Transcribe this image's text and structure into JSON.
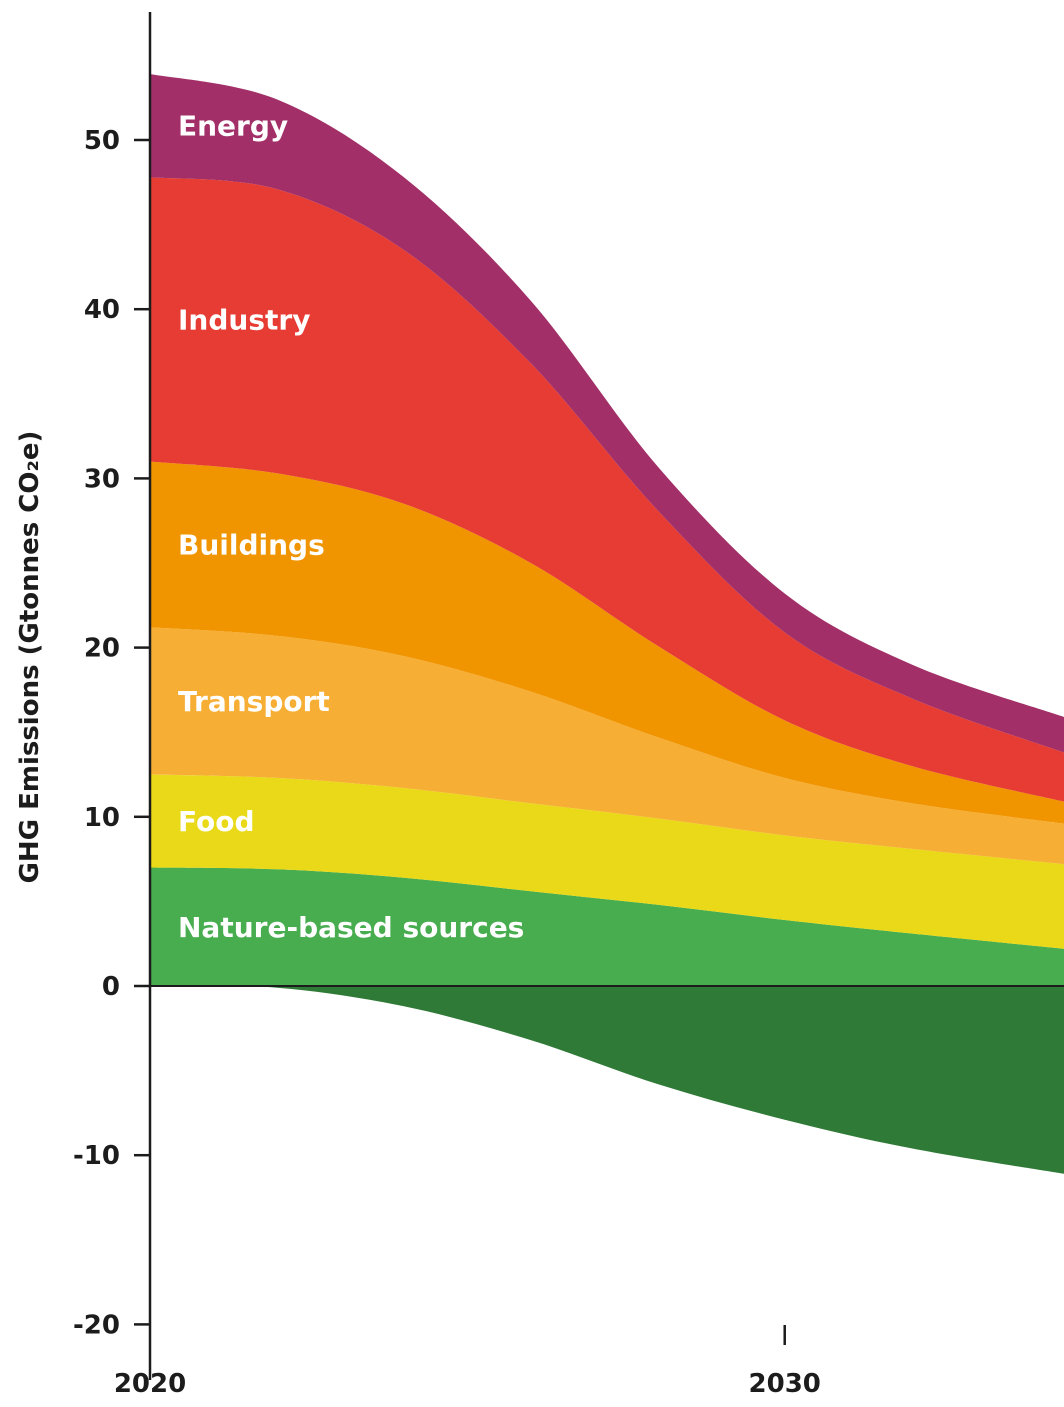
{
  "chart_data": {
    "type": "area",
    "title": "",
    "xlabel": "",
    "ylabel": "GHG Emissions (Gtonnes CO₂e)",
    "xlim": [
      2020,
      2034.4
    ],
    "ylim": [
      -21,
      58
    ],
    "x_ticks": [
      "2020",
      "2030"
    ],
    "y_ticks": [
      "50",
      "40",
      "30",
      "20",
      "10",
      "0",
      "-10",
      "-20"
    ],
    "x": [
      2020,
      2022,
      2024,
      2026,
      2028,
      2030,
      2032,
      2034.4
    ],
    "series": [
      {
        "name": "Nature-based sources",
        "color": "#47ad4f",
        "values": [
          7.0,
          6.9,
          6.4,
          5.6,
          4.8,
          3.9,
          3.1,
          2.2
        ]
      },
      {
        "name": "Food",
        "color": "#e9d918",
        "values": [
          5.5,
          5.4,
          5.3,
          5.2,
          5.1,
          5.0,
          5.0,
          5.0
        ]
      },
      {
        "name": "Transport",
        "color": "#f7ae34",
        "values": [
          8.7,
          8.4,
          7.8,
          6.6,
          4.8,
          3.4,
          2.7,
          2.4
        ]
      },
      {
        "name": "Buildings",
        "color": "#f09400",
        "values": [
          9.8,
          9.6,
          9.0,
          7.6,
          5.4,
          3.4,
          2.2,
          1.3
        ]
      },
      {
        "name": "Industry",
        "color": "#e63c34",
        "values": [
          16.8,
          16.8,
          15.0,
          11.8,
          8.0,
          5.2,
          4.0,
          2.9
        ]
      },
      {
        "name": "Energy",
        "color": "#a22f67",
        "values": [
          6.1,
          5.3,
          4.3,
          3.7,
          2.6,
          2.3,
          2.0,
          2.1
        ]
      }
    ],
    "negative_series": {
      "color": "#2f7a36",
      "values": [
        0,
        -0.1,
        -1.2,
        -3.2,
        -5.8,
        -7.9,
        -9.6,
        -11.1
      ]
    },
    "grid": false,
    "legend": "inline labels"
  }
}
